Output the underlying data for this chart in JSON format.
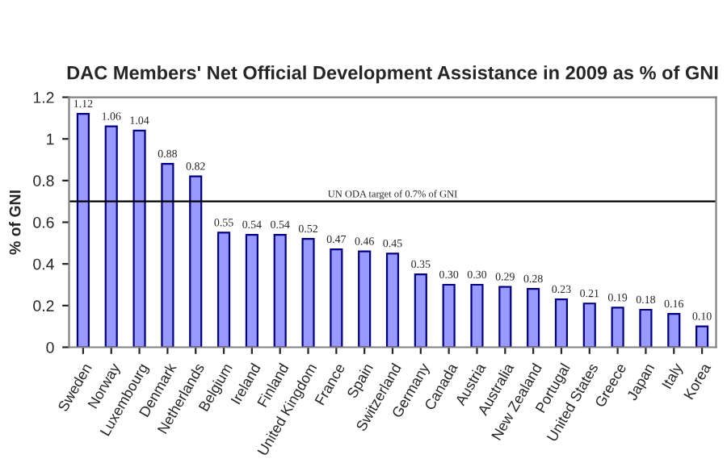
{
  "chart_data": {
    "type": "bar",
    "title": "DAC Members' Net Official Development Assistance in 2009 as % of GNI",
    "ylabel": "% of GNI",
    "categories": [
      "Sweden",
      "Norway",
      "Luxembourg",
      "Denmark",
      "Netherlands",
      "Belgium",
      "Ireland",
      "Finland",
      "United Kingdom",
      "France",
      "Spain",
      "Switzerland",
      "Germany",
      "Canada",
      "Austria",
      "Australia",
      "New Zealand",
      "Portugal",
      "United States",
      "Greece",
      "Japan",
      "Italy",
      "Korea"
    ],
    "values": [
      1.12,
      1.06,
      1.04,
      0.88,
      0.82,
      0.55,
      0.54,
      0.54,
      0.52,
      0.47,
      0.46,
      0.45,
      0.35,
      0.3,
      0.3,
      0.29,
      0.28,
      0.23,
      0.21,
      0.19,
      0.18,
      0.16,
      0.1
    ],
    "value_labels": [
      "1.12",
      "1.06",
      "1.04",
      "0.88",
      "0.82",
      "0.55",
      "0.54",
      "0.54",
      "0.52",
      "0.47",
      "0.46",
      "0.45",
      "0.35",
      "0.30",
      "0.30",
      "0.29",
      "0.28",
      "0.23",
      "0.21",
      "0.19",
      "0.18",
      "0.16",
      "0.10"
    ],
    "color": "#9999ff",
    "ylim": [
      0,
      1.2
    ],
    "yticks": [
      0,
      {
        "value": 0.2,
        "label": "0.2"
      },
      {
        "value": 0.4,
        "label": "0.4"
      },
      {
        "value": 0.6,
        "label": "0.6"
      },
      {
        "value": 0.8,
        "label": "0.8"
      },
      1,
      {
        "value": 1.2,
        "label": "1.2"
      }
    ],
    "ref_lines": [
      {
        "axis": "y",
        "value": 0.7,
        "label": "UN ODA target of 0.7% of GNI",
        "color": "#000000"
      }
    ],
    "grid": false,
    "legend": false
  }
}
